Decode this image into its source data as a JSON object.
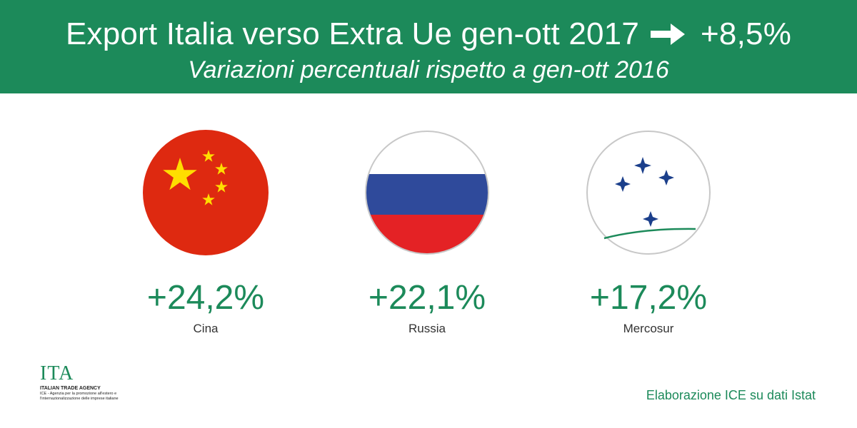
{
  "header": {
    "title": "Export Italia verso Extra Ue gen-ott 2017",
    "arrow_icon": "right-arrow-icon",
    "title_value": "+8,5%",
    "subtitle": "Variazioni percentuali rispetto a gen-ott 2016"
  },
  "cards": [
    {
      "value": "+24,2%",
      "label": "Cina",
      "flag": "china-flag-icon"
    },
    {
      "value": "+22,1%",
      "label": "Russia",
      "flag": "russia-flag-icon"
    },
    {
      "value": "+17,2%",
      "label": "Mercosur",
      "flag": "mercosur-flag-icon"
    }
  ],
  "logo": {
    "name": "ITA",
    "agency": "ITALIAN TRADE AGENCY",
    "desc_line1": "ICE - Agenzia per la promozione all'estero e",
    "desc_line2": "l'internazionalizzazione delle imprese italiane"
  },
  "source": "Elaborazione ICE su dati Istat",
  "colors": {
    "brand_green": "#1c8a5a",
    "china_red": "#de2910",
    "china_yellow": "#ffde00",
    "russia_blue": "#2f4a9b",
    "russia_red": "#e42225",
    "mercosur_blue": "#1b3f8b"
  }
}
